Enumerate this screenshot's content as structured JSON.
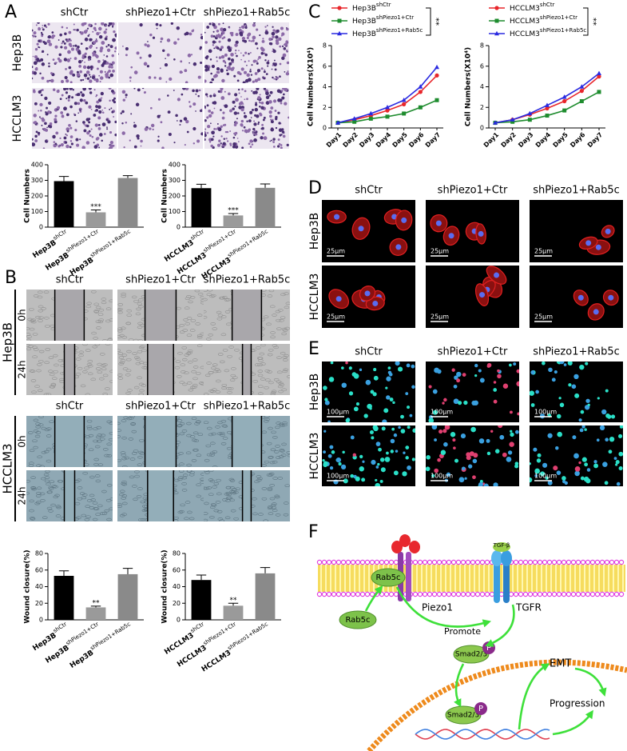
{
  "panel_labels": [
    "A",
    "B",
    "C",
    "D",
    "E",
    "F"
  ],
  "panel_a": {
    "columns": [
      "shCtr",
      "shPiezo1+Ctr",
      "shPiezo1+Rab5c"
    ],
    "rows": [
      "Hep3B",
      "HCCLM3"
    ]
  },
  "panel_b": {
    "columns": [
      "shCtr",
      "shPiezo1+Ctr",
      "shPiezo1+Rab5c"
    ],
    "groups": [
      "Hep3B",
      "HCCLM3"
    ],
    "times": [
      "0h",
      "24h"
    ]
  },
  "panel_d": {
    "columns": [
      "shCtr",
      "shPiezo1+Ctr",
      "shPiezo1+Rab5c"
    ],
    "rows": [
      "Hep3B",
      "HCCLM3"
    ],
    "scale_bar": "25μm"
  },
  "panel_e": {
    "columns": [
      "shCtr",
      "shPiezo1+Ctr",
      "shPiezo1+Rab5c"
    ],
    "rows": [
      "Hep3B",
      "HCCLM3"
    ],
    "scale_bar": "100μm"
  },
  "chart_data": [
    {
      "type": "bar",
      "y_label": "Cell Numbers",
      "categories": [
        "Hep3B",
        "Hep3B",
        "Hep3B"
      ],
      "category_superscripts": [
        "shCtr",
        "shPiezo1+Ctr",
        "shPiezo1+Rab5c"
      ],
      "values": [
        295,
        95,
        315
      ],
      "errors": [
        30,
        15,
        15
      ],
      "value_annotations": [
        null,
        "***",
        null
      ],
      "colors": [
        "#000000",
        "#9a9a9a",
        "#8a8a8a"
      ],
      "ylim": [
        0,
        400
      ],
      "yticks": [
        0,
        100,
        200,
        300,
        400
      ]
    },
    {
      "type": "bar",
      "y_label": "Cell Numbers",
      "categories": [
        "HCCLM3",
        "HCCLM3",
        "HCCLM3"
      ],
      "category_superscripts": [
        "shCtr",
        "shPiezo1+Ctr",
        "shPiezo1+Rab5c"
      ],
      "values": [
        250,
        75,
        252
      ],
      "errors": [
        25,
        12,
        25
      ],
      "value_annotations": [
        null,
        "***",
        null
      ],
      "colors": [
        "#000000",
        "#9a9a9a",
        "#8a8a8a"
      ],
      "ylim": [
        0,
        400
      ],
      "yticks": [
        0,
        100,
        200,
        300,
        400
      ]
    },
    {
      "type": "line",
      "y_label": "Cell Numbers(X10⁴)",
      "categories": [
        "Day1",
        "Day2",
        "Day3",
        "Day4",
        "Day5",
        "Day6",
        "Day7"
      ],
      "series": [
        {
          "name": "Hep3B",
          "name_sup": "shCtr",
          "color": "#e8262b",
          "marker": "circle",
          "values": [
            0.5,
            0.8,
            1.2,
            1.7,
            2.3,
            3.5,
            5.1
          ]
        },
        {
          "name": "Hep3B",
          "name_sup": "shPiezo1+Ctr",
          "color": "#1e8c2e",
          "marker": "square",
          "values": [
            0.5,
            0.6,
            0.9,
            1.1,
            1.4,
            2.0,
            2.7
          ]
        },
        {
          "name": "Hep3B",
          "name_sup": "shPiezo1+Rab5c",
          "color": "#2a2ae0",
          "marker": "triangle",
          "values": [
            0.5,
            0.9,
            1.4,
            2.0,
            2.7,
            4.0,
            5.9
          ]
        }
      ],
      "annotation": "**",
      "ylim": [
        0,
        8
      ],
      "yticks": [
        0,
        2,
        4,
        6,
        8
      ]
    },
    {
      "type": "line",
      "y_label": "Cell Numbers(X10⁴)",
      "categories": [
        "Day1",
        "Day2",
        "Day3",
        "Day4",
        "Day5",
        "Day6",
        "Day7"
      ],
      "series": [
        {
          "name": "HCCLM3",
          "name_sup": "shCtr",
          "color": "#e8262b",
          "marker": "circle",
          "values": [
            0.5,
            0.8,
            1.3,
            1.9,
            2.6,
            3.6,
            5.0
          ]
        },
        {
          "name": "HCCLM3",
          "name_sup": "shPiezo1+Ctr",
          "color": "#1e8c2e",
          "marker": "square",
          "values": [
            0.5,
            0.6,
            0.8,
            1.2,
            1.7,
            2.6,
            3.5
          ]
        },
        {
          "name": "HCCLM3",
          "name_sup": "shPiezo1+Rab5c",
          "color": "#2a2ae0",
          "marker": "triangle",
          "values": [
            0.5,
            0.8,
            1.4,
            2.2,
            3.0,
            4.0,
            5.3
          ]
        }
      ],
      "annotation": "**",
      "ylim": [
        0,
        8
      ],
      "yticks": [
        0,
        2,
        4,
        6,
        8
      ]
    },
    {
      "type": "bar",
      "y_label": "Wound closure(%)",
      "categories": [
        "Hep3B",
        "Hep3B",
        "Hep3B"
      ],
      "category_superscripts": [
        "shCtr",
        "shPiezo1+Ctr",
        "shPiezo1+Rab5c"
      ],
      "values": [
        53,
        15,
        55
      ],
      "errors": [
        6,
        1.5,
        7
      ],
      "value_annotations": [
        null,
        "**",
        null
      ],
      "colors": [
        "#000000",
        "#9a9a9a",
        "#8a8a8a"
      ],
      "ylim": [
        0,
        80
      ],
      "yticks": [
        0,
        20,
        40,
        60,
        80
      ]
    },
    {
      "type": "bar",
      "y_label": "Wound closure(%)",
      "categories": [
        "HCCLM3",
        "HCCLM3",
        "HCCLM3"
      ],
      "category_superscripts": [
        "shCtr",
        "shPiezo1+Ctr",
        "shPiezo1+Rab5c"
      ],
      "values": [
        48,
        17,
        56
      ],
      "errors": [
        6,
        3,
        7
      ],
      "value_annotations": [
        null,
        "**",
        null
      ],
      "colors": [
        "#000000",
        "#9a9a9a",
        "#8a8a8a"
      ],
      "ylim": [
        0,
        80
      ],
      "yticks": [
        0,
        20,
        40,
        60,
        80
      ]
    }
  ],
  "diagram": {
    "ligand": "TGF-β",
    "rab5c": "Rab5c",
    "piezo1": "Piezo1",
    "receptor": "TGFR",
    "promote": "Promote",
    "smad": "Smad2/3",
    "phospho": "P",
    "emt": "EMT",
    "progression": "Progression"
  }
}
